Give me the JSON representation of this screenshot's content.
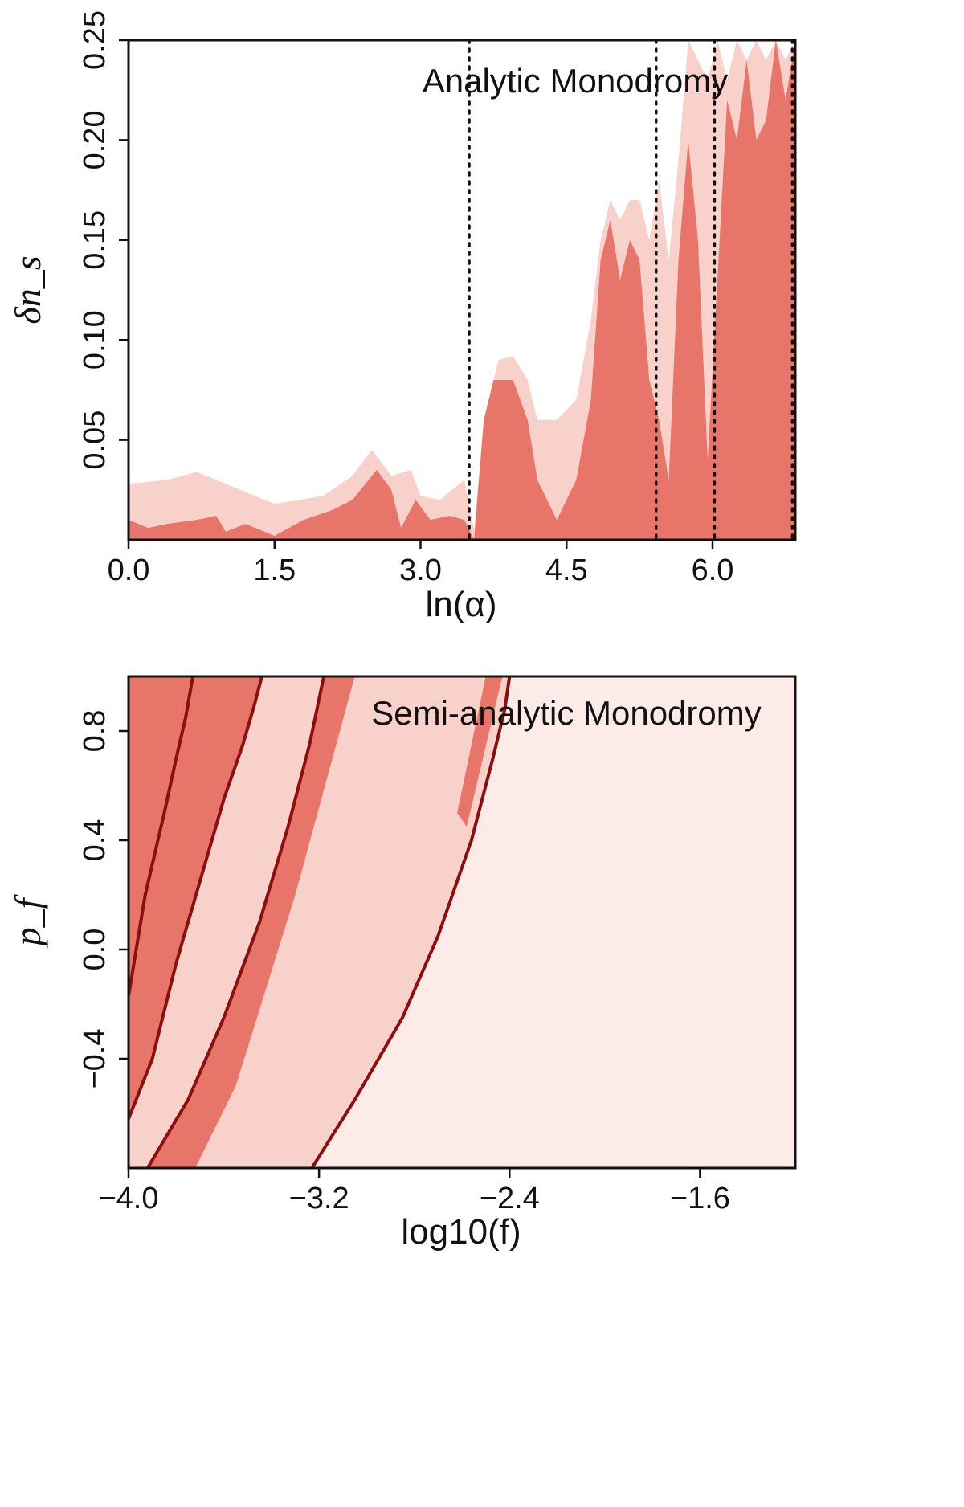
{
  "chart_data": [
    {
      "type": "area",
      "title": "Analytic Monodromy",
      "xlabel": "ln(α)",
      "ylabel": "δn_s",
      "xlim": [
        0.0,
        6.85
      ],
      "ylim": [
        0.0,
        0.25
      ],
      "x_ticks": [
        "0.0",
        "1.5",
        "3.0",
        "4.5",
        "6.0"
      ],
      "y_ticks": [
        "0.05",
        "0.10",
        "0.15",
        "0.20",
        "0.25"
      ],
      "reference_lines_x": [
        3.5,
        5.42,
        6.02,
        6.82
      ],
      "colors": {
        "inner": "#e8756a",
        "outer": "#f8d2ca",
        "ref": "#111111"
      },
      "series": [
        {
          "name": "outer contour",
          "x": [
            0.0,
            0.4,
            0.7,
            1.0,
            1.5,
            2.0,
            2.3,
            2.5,
            2.7,
            2.9,
            3.0,
            3.2,
            3.45,
            3.55,
            3.65,
            3.8,
            3.95,
            4.1,
            4.2,
            4.4,
            4.6,
            4.75,
            4.85,
            4.95,
            5.05,
            5.15,
            5.25,
            5.35,
            5.45,
            5.55,
            5.65,
            5.75,
            5.85,
            5.95,
            6.05,
            6.15,
            6.25,
            6.35,
            6.45,
            6.55,
            6.65,
            6.75,
            6.85
          ],
          "values": [
            0.028,
            0.03,
            0.034,
            0.028,
            0.018,
            0.022,
            0.032,
            0.045,
            0.032,
            0.035,
            0.022,
            0.02,
            0.03,
            0.005,
            0.06,
            0.09,
            0.092,
            0.08,
            0.06,
            0.06,
            0.07,
            0.11,
            0.15,
            0.17,
            0.16,
            0.17,
            0.17,
            0.15,
            0.18,
            0.14,
            0.19,
            0.25,
            0.24,
            0.23,
            0.25,
            0.23,
            0.25,
            0.24,
            0.25,
            0.24,
            0.25,
            0.24,
            0.25
          ]
        },
        {
          "name": "inner contour",
          "x": [
            0.0,
            0.2,
            0.4,
            0.7,
            0.9,
            1.0,
            1.2,
            1.5,
            1.8,
            2.1,
            2.3,
            2.55,
            2.7,
            2.8,
            2.95,
            3.1,
            3.3,
            3.45,
            3.55,
            3.65,
            3.75,
            3.95,
            4.1,
            4.2,
            4.4,
            4.6,
            4.75,
            4.85,
            4.95,
            5.05,
            5.15,
            5.25,
            5.35,
            5.45,
            5.55,
            5.65,
            5.75,
            5.85,
            5.95,
            6.05,
            6.15,
            6.25,
            6.35,
            6.45,
            6.55,
            6.65,
            6.75,
            6.85
          ],
          "values": [
            0.01,
            0.006,
            0.008,
            0.01,
            0.012,
            0.004,
            0.008,
            0.002,
            0.01,
            0.015,
            0.02,
            0.035,
            0.025,
            0.006,
            0.02,
            0.01,
            0.012,
            0.01,
            0.0,
            0.06,
            0.08,
            0.08,
            0.06,
            0.03,
            0.01,
            0.03,
            0.07,
            0.14,
            0.16,
            0.13,
            0.15,
            0.14,
            0.08,
            0.06,
            0.03,
            0.14,
            0.2,
            0.15,
            0.04,
            0.13,
            0.22,
            0.2,
            0.24,
            0.2,
            0.21,
            0.25,
            0.22,
            0.25
          ]
        }
      ]
    },
    {
      "type": "heatmap",
      "title": "Semi-analytic Monodromy",
      "xlabel": "log10(f)",
      "ylabel": "p_f",
      "xlim": [
        -4.0,
        -1.2
      ],
      "ylim": [
        -0.8,
        1.0
      ],
      "x_ticks": [
        "−4.0",
        "−3.2",
        "−2.4",
        "−1.6"
      ],
      "y_ticks": [
        "−0.4",
        "0.0",
        "0.4",
        "0.8"
      ],
      "colors": {
        "inner": "#e8756a",
        "outer": "#f8d2ca",
        "curve": "#8b0f0f"
      },
      "curves": [
        {
          "name": "curve 1",
          "x": [
            -4.0,
            -3.93,
            -3.85,
            -3.8,
            -3.76,
            -3.73
          ],
          "y": [
            -0.17,
            0.2,
            0.5,
            0.7,
            0.85,
            1.0
          ]
        },
        {
          "name": "curve 2",
          "x": [
            -4.0,
            -3.9,
            -3.8,
            -3.7,
            -3.6,
            -3.52,
            -3.47,
            -3.44
          ],
          "y": [
            -0.62,
            -0.4,
            -0.05,
            0.25,
            0.55,
            0.75,
            0.9,
            1.0
          ]
        },
        {
          "name": "curve 3",
          "x": [
            -3.92,
            -3.75,
            -3.6,
            -3.45,
            -3.33,
            -3.24,
            -3.18
          ],
          "y": [
            -0.8,
            -0.55,
            -0.25,
            0.1,
            0.45,
            0.75,
            1.0
          ]
        },
        {
          "name": "curve 4",
          "x": [
            -3.23,
            -3.05,
            -2.85,
            -2.7,
            -2.56,
            -2.47,
            -2.42,
            -2.4
          ],
          "y": [
            -0.8,
            -0.55,
            -0.25,
            0.05,
            0.4,
            0.7,
            0.88,
            1.0
          ]
        }
      ]
    }
  ]
}
